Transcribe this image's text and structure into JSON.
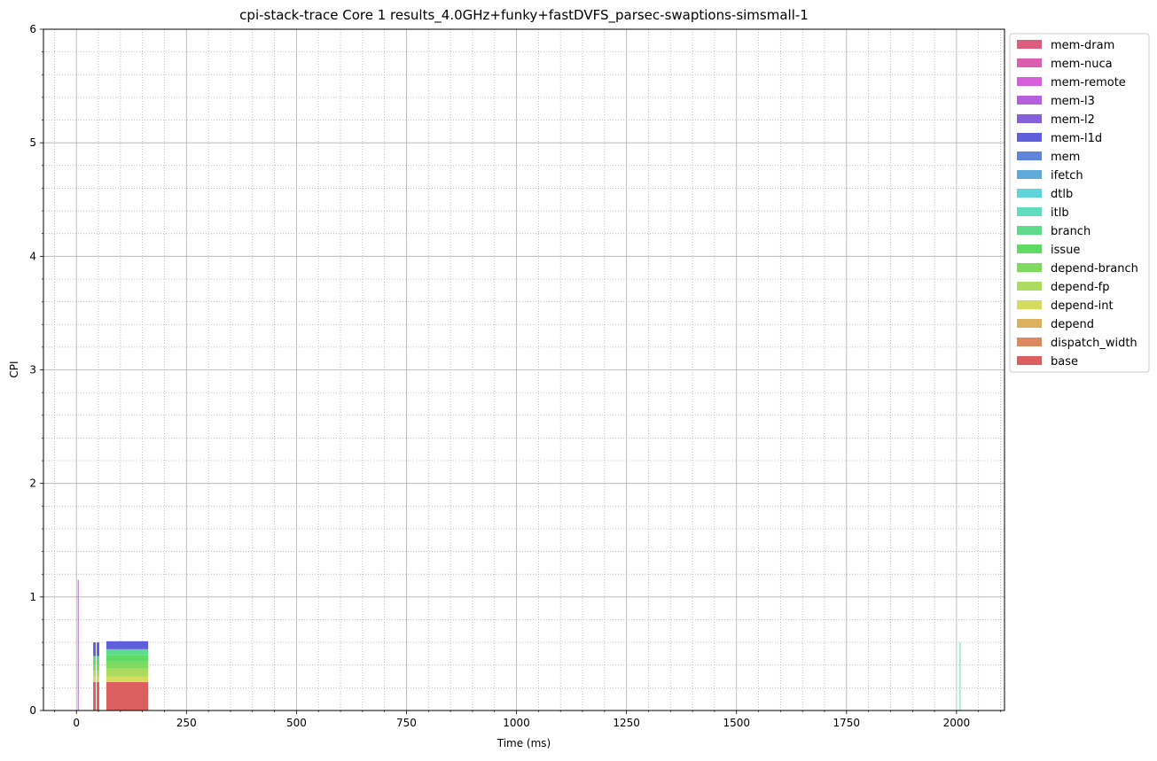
{
  "chart_data": {
    "type": "area",
    "title": "cpi-stack-trace Core 1 results_4.0GHz+funky+fastDVFS_parsec-swaptions-simsmall-1",
    "xlabel": "Time (ms)",
    "ylabel": "CPI",
    "xlim": [
      -75,
      2109
    ],
    "ylim": [
      0,
      6
    ],
    "x_ticks": [
      0,
      250,
      500,
      750,
      1000,
      1250,
      1500,
      1750,
      2000
    ],
    "x_tick_labels": [
      "0",
      "250",
      "500",
      "750",
      "1000",
      "1250",
      "1500",
      "1750",
      "2000"
    ],
    "y_ticks": [
      0,
      1,
      2,
      3,
      4,
      5,
      6
    ],
    "y_tick_labels": [
      "0",
      "1",
      "2",
      "3",
      "4",
      "5",
      "6"
    ],
    "grid": "major solid, minor dotted",
    "legend_position": "outside top-right",
    "legend": [
      "mem-dram",
      "mem-nuca",
      "mem-remote",
      "mem-l3",
      "mem-l2",
      "mem-l1d",
      "mem",
      "ifetch",
      "dtlb",
      "itlb",
      "branch",
      "issue",
      "depend-branch",
      "depend-fp",
      "depend-int",
      "depend",
      "dispatch_width",
      "base"
    ],
    "colors": {
      "mem-dram": "#db5f7d",
      "mem-nuca": "#db5fae",
      "mem-remote": "#d85fdb",
      "mem-l3": "#b45fdb",
      "mem-l2": "#865fdb",
      "mem-l1d": "#5f5fdb",
      "mem": "#5f86db",
      "ifetch": "#5faadb",
      "dtlb": "#5fd5db",
      "itlb": "#5fdbbd",
      "branch": "#5fdb8c",
      "issue": "#5fdb63",
      "depend-branch": "#7fdb5f",
      "depend-fp": "#addb5f",
      "depend-int": "#d5db5f",
      "depend": "#dbb05f",
      "dispatch_width": "#db8a5f",
      "base": "#db5f5f"
    },
    "segments": [
      {
        "x": [
          3,
          5
        ],
        "stack": {
          "base": 0.0,
          "mem-l3": 1.15
        }
      },
      {
        "x": [
          38,
          44
        ],
        "stack": {
          "base": 0.25,
          "depend-int": 0.05,
          "depend-fp": 0.05,
          "depend-branch": 0.05,
          "issue": 0.05,
          "branch": 0.03,
          "mem-l1d": 0.12
        }
      },
      {
        "x": [
          46,
          52
        ],
        "stack": {
          "base": 0.25,
          "depend-int": 0.05,
          "depend-fp": 0.05,
          "depend-branch": 0.05,
          "issue": 0.05,
          "branch": 0.03,
          "mem-l1d": 0.12
        }
      },
      {
        "x": [
          68,
          163
        ],
        "stack": {
          "base": 0.25,
          "depend-int": 0.05,
          "depend-fp": 0.07,
          "depend-branch": 0.06,
          "issue": 0.06,
          "branch": 0.05,
          "mem-l1d": 0.07
        }
      },
      {
        "x": [
          2007,
          2009
        ],
        "stack": {
          "itlb": 0.6
        }
      }
    ]
  }
}
